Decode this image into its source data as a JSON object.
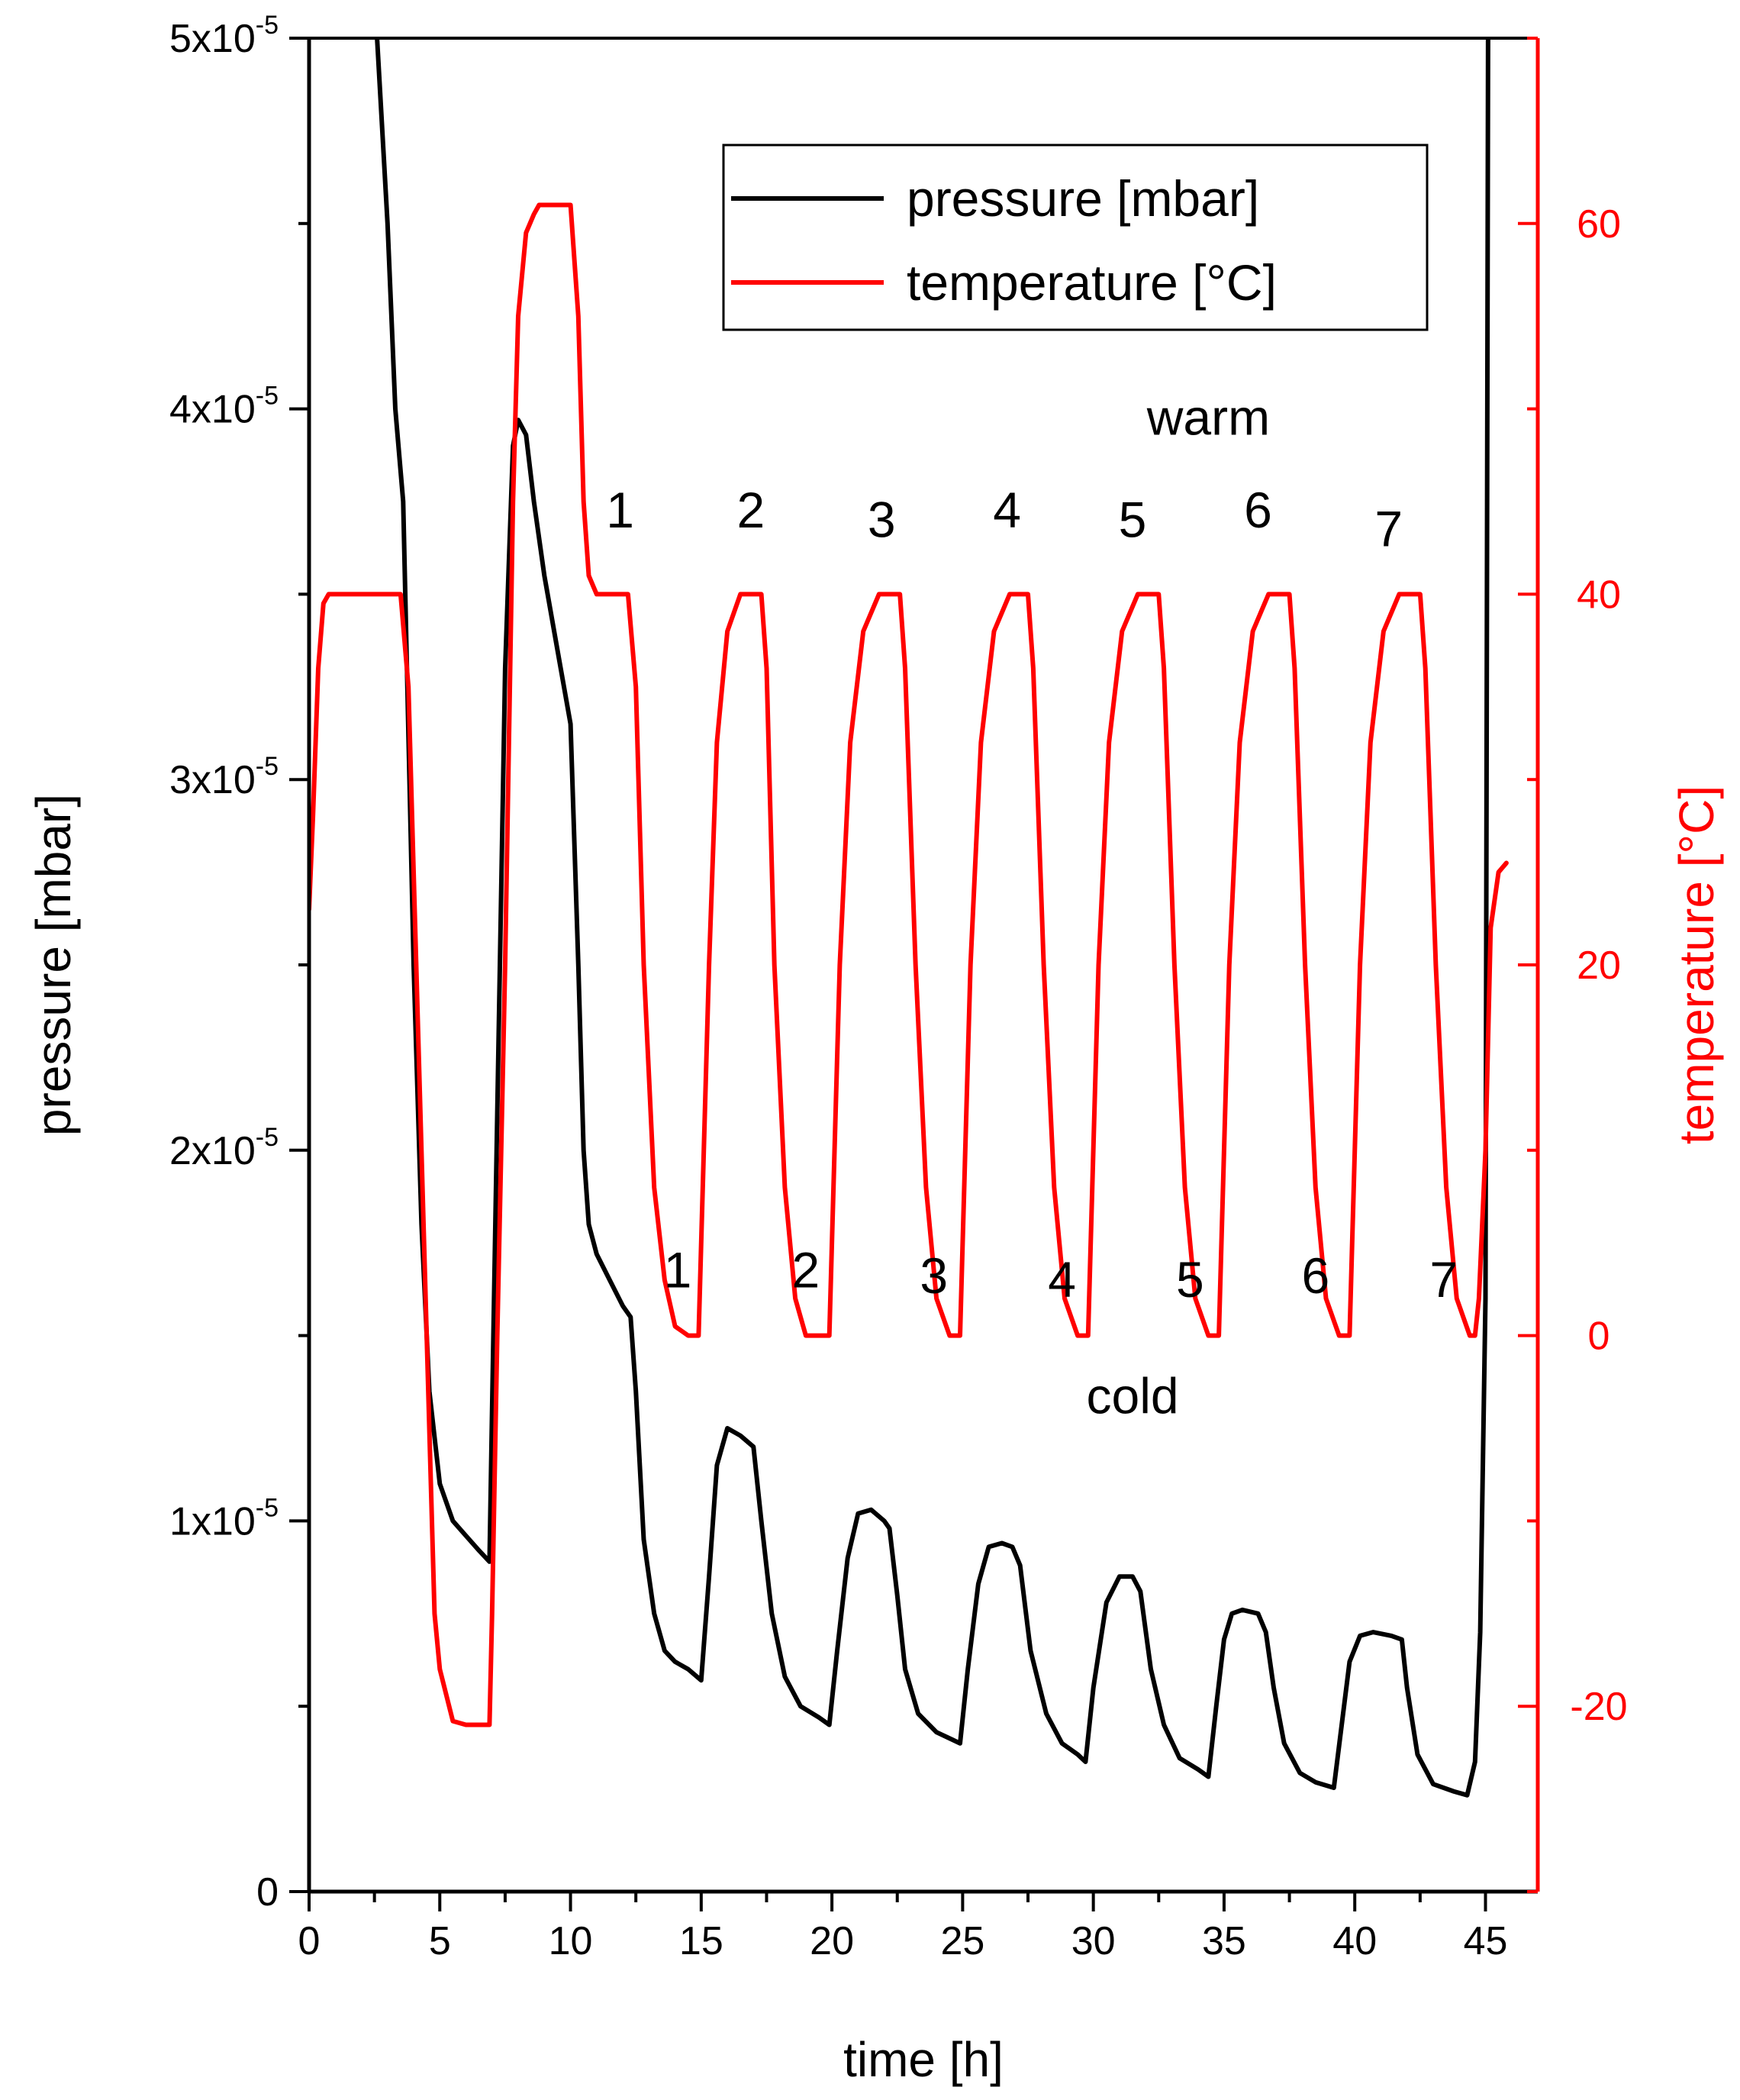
{
  "chart_data": {
    "type": "line",
    "xlabel": "time [h]",
    "ylabel_left": "pressure [mbar]",
    "ylabel_right": "temperature [°C]",
    "xlim": [
      0,
      47
    ],
    "ylim_left": [
      0,
      5e-05
    ],
    "ylim_right": [
      -30,
      70
    ],
    "x_ticks": [
      "0",
      "5",
      "10",
      "15",
      "20",
      "25",
      "30",
      "35",
      "40",
      "45"
    ],
    "y_left_ticks": [
      {
        "value": 0,
        "mantissa": "0",
        "exp": ""
      },
      {
        "value": 1e-05,
        "mantissa": "1x10",
        "exp": "-5"
      },
      {
        "value": 2e-05,
        "mantissa": "2x10",
        "exp": "-5"
      },
      {
        "value": 3e-05,
        "mantissa": "3x10",
        "exp": "-5"
      },
      {
        "value": 4e-05,
        "mantissa": "4x10",
        "exp": "-5"
      },
      {
        "value": 5e-05,
        "mantissa": "5x10",
        "exp": "-5"
      }
    ],
    "y_right_ticks": [
      "-20",
      "0",
      "20",
      "40",
      "60"
    ],
    "grid": false,
    "legend": {
      "position": "top-right",
      "entries": [
        {
          "label": "pressure [mbar]",
          "color": "#000000"
        },
        {
          "label": "temperature [°C]",
          "color": "#ff0000"
        }
      ]
    },
    "annotations_top": [
      "1",
      "2",
      "3",
      "4",
      "5",
      "6",
      "7"
    ],
    "annotations_top_x": [
      11.9,
      16.9,
      21.9,
      26.7,
      31.5,
      36.3,
      41.3
    ],
    "annotations_top_temp": [
      44.5,
      44.5,
      44,
      44.5,
      44,
      44.5,
      43.5
    ],
    "annotations_bottom": [
      "1",
      "2",
      "3",
      "4",
      "5",
      "6",
      "7"
    ],
    "annotations_bottom_x": [
      14.1,
      19.0,
      23.9,
      28.8,
      33.7,
      38.5,
      43.4
    ],
    "annotations_bottom_temp": [
      3.5,
      3.5,
      3.2,
      3,
      3,
      3.2,
      3
    ],
    "label_warm": "warm",
    "label_warm_x": 34.4,
    "label_warm_temp": 49.5,
    "label_cold": "cold",
    "label_cold_x": 31.5,
    "label_cold_temp": -3.3,
    "series": [
      {
        "name": "pressure [mbar]",
        "axis": "left",
        "color": "#000000",
        "x": [
          2.6,
          3.0,
          3.3,
          3.6,
          4.0,
          4.3,
          4.6,
          5.0,
          5.5,
          6.0,
          6.5,
          6.9,
          7.0,
          7.2,
          7.5,
          7.8,
          8.0,
          8.3,
          8.6,
          9.0,
          9.5,
          10.0,
          10.3,
          10.5,
          10.7,
          11.0,
          11.5,
          12.0,
          12.3,
          12.5,
          12.8,
          13.2,
          13.6,
          14.0,
          14.5,
          15.0,
          15.3,
          15.6,
          16.0,
          16.5,
          17.0,
          17.3,
          17.7,
          18.2,
          18.8,
          19.5,
          19.9,
          20.2,
          20.6,
          21.0,
          21.5,
          22.0,
          22.2,
          22.5,
          22.8,
          23.3,
          24.0,
          24.6,
          24.9,
          25.2,
          25.6,
          26.0,
          26.5,
          26.9,
          27.2,
          27.6,
          28.2,
          28.8,
          29.4,
          29.7,
          30.0,
          30.5,
          31.0,
          31.5,
          31.8,
          32.2,
          32.7,
          33.3,
          34.0,
          34.4,
          34.7,
          35.0,
          35.3,
          35.7,
          36.3,
          36.6,
          36.9,
          37.3,
          37.9,
          38.5,
          39.2,
          39.5,
          39.8,
          40.2,
          40.7,
          41.4,
          41.8,
          42.0,
          42.4,
          43.0,
          43.8,
          44.3,
          44.6,
          44.8,
          45.0,
          45.1
        ],
        "y": [
          5e-05,
          4.5e-05,
          4e-05,
          3.75e-05,
          2.5e-05,
          1.8e-05,
          1.35e-05,
          1.1e-05,
          1e-05,
          9.6e-06,
          9.2e-06,
          8.9e-06,
          1.3e-05,
          2.1e-05,
          3.3e-05,
          3.9e-05,
          3.97e-05,
          3.93e-05,
          3.75e-05,
          3.55e-05,
          3.35e-05,
          3.15e-05,
          2.5e-05,
          2e-05,
          1.8e-05,
          1.72e-05,
          1.65e-05,
          1.58e-05,
          1.55e-05,
          1.35e-05,
          9.5e-06,
          7.5e-06,
          6.5e-06,
          6.2e-06,
          6e-06,
          5.7e-06,
          8.5e-06,
          1.15e-05,
          1.25e-05,
          1.23e-05,
          1.2e-05,
          1e-05,
          7.5e-06,
          5.8e-06,
          5e-06,
          4.7e-06,
          4.5e-06,
          6.5e-06,
          9e-06,
          1.02e-05,
          1.03e-05,
          1e-05,
          9.8e-06,
          8e-06,
          6e-06,
          4.8e-06,
          4.3e-06,
          4.1e-06,
          4e-06,
          6e-06,
          8.3e-06,
          9.3e-06,
          9.4e-06,
          9.3e-06,
          8.8e-06,
          6.5e-06,
          4.8e-06,
          4e-06,
          3.7e-06,
          3.5e-06,
          5.5e-06,
          7.8e-06,
          8.5e-06,
          8.5e-06,
          8.1e-06,
          6e-06,
          4.5e-06,
          3.6e-06,
          3.3e-06,
          3.1e-06,
          5e-06,
          6.8e-06,
          7.5e-06,
          7.6e-06,
          7.5e-06,
          7e-06,
          5.5e-06,
          4e-06,
          3.2e-06,
          2.95e-06,
          2.8e-06,
          4.5e-06,
          6.2e-06,
          6.9e-06,
          7e-06,
          6.9e-06,
          6.8e-06,
          5.5e-06,
          3.7e-06,
          2.9e-06,
          2.7e-06,
          2.6e-06,
          3.5e-06,
          7e-06,
          1.6e-05,
          5e-05
        ]
      },
      {
        "name": "temperature [°C]",
        "axis": "right",
        "color": "#ff0000",
        "x": [
          0.0,
          0.15,
          0.35,
          0.55,
          0.75,
          1.0,
          2.0,
          3.5,
          3.8,
          4.1,
          4.5,
          4.8,
          5.0,
          5.5,
          6.0,
          6.9,
          7.0,
          7.2,
          7.5,
          7.8,
          8.0,
          8.3,
          8.6,
          8.8,
          9.0,
          10.0,
          10.3,
          10.5,
          10.7,
          11.0,
          11.5,
          12.0,
          12.2,
          12.5,
          12.8,
          13.2,
          13.6,
          14.0,
          14.5,
          14.9,
          15.0,
          15.3,
          15.6,
          16.0,
          16.5,
          17.0,
          17.3,
          17.5,
          17.8,
          18.2,
          18.6,
          19.0,
          19.5,
          19.9,
          20.0,
          20.3,
          20.7,
          21.2,
          21.8,
          22.3,
          22.6,
          22.8,
          23.2,
          23.6,
          24.0,
          24.5,
          24.9,
          25.0,
          25.3,
          25.7,
          26.2,
          26.8,
          27.2,
          27.5,
          27.7,
          28.1,
          28.5,
          28.9,
          29.4,
          29.8,
          29.9,
          30.2,
          30.6,
          31.1,
          31.7,
          32.2,
          32.5,
          32.7,
          33.1,
          33.5,
          33.9,
          34.4,
          34.8,
          34.9,
          35.2,
          35.6,
          36.1,
          36.7,
          37.2,
          37.5,
          37.7,
          38.1,
          38.5,
          38.9,
          39.4,
          39.8,
          39.9,
          40.2,
          40.6,
          41.1,
          41.7,
          42.2,
          42.5,
          42.7,
          43.1,
          43.5,
          43.9,
          44.4,
          44.6,
          44.75,
          45.0,
          45.2,
          45.5,
          45.8
        ],
        "y": [
          23,
          28,
          36,
          39.5,
          40,
          40,
          40,
          40,
          35,
          20,
          0,
          -15,
          -18,
          -20.8,
          -21,
          -21,
          -15,
          0,
          20,
          45,
          55,
          59.5,
          60.5,
          61,
          61,
          61,
          55,
          45,
          41,
          40,
          40,
          40,
          40,
          35,
          20,
          8,
          3,
          0.5,
          0,
          0,
          5,
          20,
          32,
          38,
          40,
          40,
          40,
          36,
          20,
          8,
          2,
          0,
          0,
          0,
          5,
          20,
          32,
          38,
          40,
          40,
          40,
          36,
          20,
          8,
          2,
          0,
          0,
          5,
          20,
          32,
          38,
          40,
          40,
          40,
          36,
          20,
          8,
          2,
          0,
          0,
          5,
          20,
          32,
          38,
          40,
          40,
          40,
          36,
          20,
          8,
          2,
          0,
          0,
          5,
          20,
          32,
          38,
          40,
          40,
          40,
          36,
          20,
          8,
          2,
          0,
          0,
          5,
          20,
          32,
          38,
          40,
          40,
          40,
          36,
          20,
          8,
          2,
          0,
          0,
          2,
          10,
          22,
          25,
          25.5
        ]
      }
    ]
  }
}
